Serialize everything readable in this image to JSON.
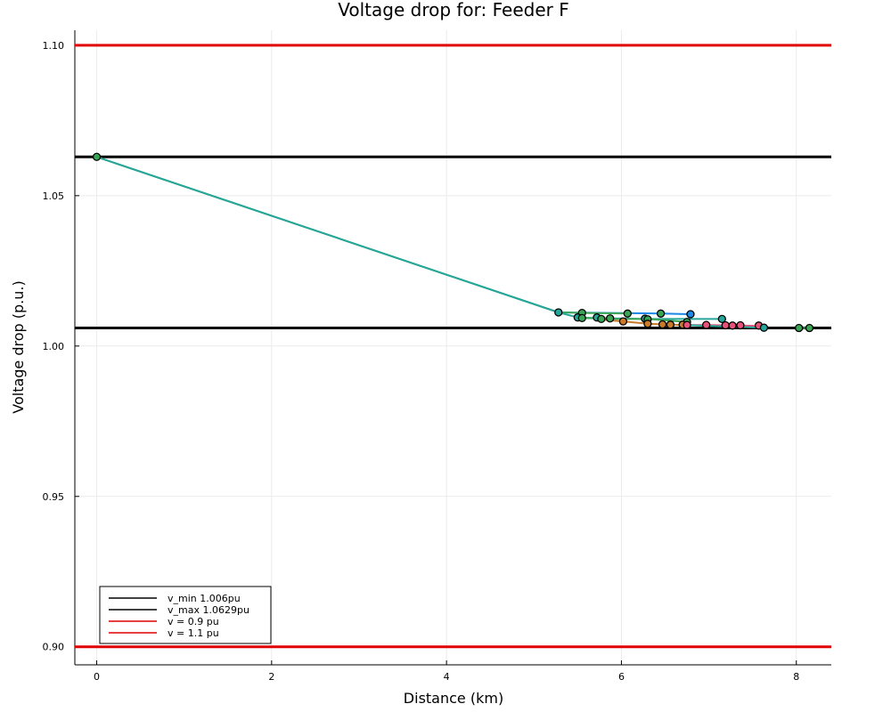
{
  "chart_data": {
    "type": "line",
    "title": "Voltage drop for: Feeder F",
    "xlabel": "Distance (km)",
    "ylabel": "Voltage drop (p.u.)",
    "xlim": [
      -0.25,
      8.4
    ],
    "ylim": [
      0.894,
      1.105
    ],
    "xticks": [
      0,
      2,
      4,
      6,
      8
    ],
    "yticks": [
      0.9,
      0.95,
      1.0,
      1.05,
      1.1
    ],
    "ytick_labels": [
      "0.90",
      "0.95",
      "1.00",
      "1.05",
      "1.10"
    ],
    "grid": true,
    "legend_position": "bottom-left",
    "reference_lines": [
      {
        "name": "v_min 1.006pu",
        "y": 1.006,
        "color": "#000000"
      },
      {
        "name": "v_max 1.0629pu",
        "y": 1.0629,
        "color": "#000000"
      },
      {
        "name": "v = 0.9 pu",
        "y": 0.9,
        "color": "#e00000"
      },
      {
        "name": "v = 1.1 pu",
        "y": 1.1,
        "color": "#e00000"
      }
    ],
    "branches": [
      {
        "color": "#3aa655",
        "x": [
          0,
          5.28
        ],
        "y": [
          1.0629,
          1.0112
        ]
      },
      {
        "color": "#26a69a",
        "x": [
          0,
          5.28
        ],
        "y": [
          1.0629,
          1.0112
        ]
      },
      {
        "color": "#1e88e5",
        "x": [
          5.28,
          6.45,
          6.79
        ],
        "y": [
          1.0112,
          1.0108,
          1.0106
        ]
      },
      {
        "color": "#3aa655",
        "x": [
          5.28,
          5.55,
          6.07
        ],
        "y": [
          1.0112,
          1.011,
          1.0108
        ]
      },
      {
        "color": "#26a69a",
        "x": [
          5.28,
          5.5,
          5.72,
          6.27,
          7.15
        ],
        "y": [
          1.0112,
          1.0095,
          1.0093,
          1.009,
          1.009
        ]
      },
      {
        "color": "#3aa655",
        "x": [
          5.5,
          5.55,
          5.77,
          5.87,
          6.3,
          6.75
        ],
        "y": [
          1.0095,
          1.0093,
          1.0092,
          1.009,
          1.009,
          1.008
        ]
      },
      {
        "color": "#c97a2a",
        "x": [
          5.77,
          6.02,
          6.3,
          6.47,
          6.56,
          6.7
        ],
        "y": [
          1.0088,
          1.0082,
          1.0074,
          1.0072,
          1.0071,
          1.007
        ]
      },
      {
        "color": "#e8517a",
        "x": [
          6.7,
          6.97,
          7.19,
          7.27,
          7.36,
          7.57
        ],
        "y": [
          1.007,
          1.007,
          1.0069,
          1.0068,
          1.0068,
          1.0067
        ]
      },
      {
        "color": "#26a69a",
        "x": [
          6.74,
          7.63
        ],
        "y": [
          1.007,
          1.0061
        ]
      },
      {
        "color": "#3aa655",
        "x": [
          8.03,
          8.15
        ],
        "y": [
          1.006,
          1.006
        ]
      }
    ],
    "points": [
      {
        "x": 0,
        "y": 1.0629,
        "color": "#3aa655"
      },
      {
        "x": 5.28,
        "y": 1.0112,
        "color": "#26a69a"
      },
      {
        "x": 5.55,
        "y": 1.011,
        "color": "#3aa655"
      },
      {
        "x": 6.07,
        "y": 1.0108,
        "color": "#3aa655"
      },
      {
        "x": 6.45,
        "y": 1.0108,
        "color": "#3aa655"
      },
      {
        "x": 6.79,
        "y": 1.0106,
        "color": "#1e88e5"
      },
      {
        "x": 5.5,
        "y": 1.0095,
        "color": "#26a69a"
      },
      {
        "x": 5.55,
        "y": 1.0093,
        "color": "#3aa655"
      },
      {
        "x": 5.72,
        "y": 1.0095,
        "color": "#26a69a"
      },
      {
        "x": 5.77,
        "y": 1.009,
        "color": "#3aa655"
      },
      {
        "x": 5.87,
        "y": 1.0092,
        "color": "#3aa655"
      },
      {
        "x": 6.27,
        "y": 1.0091,
        "color": "#26a69a"
      },
      {
        "x": 6.3,
        "y": 1.0089,
        "color": "#3aa655"
      },
      {
        "x": 7.15,
        "y": 1.009,
        "color": "#26a69a"
      },
      {
        "x": 6.75,
        "y": 1.008,
        "color": "#3aa655"
      },
      {
        "x": 6.02,
        "y": 1.0082,
        "color": "#c97a2a"
      },
      {
        "x": 6.3,
        "y": 1.0074,
        "color": "#c97a2a"
      },
      {
        "x": 6.47,
        "y": 1.0072,
        "color": "#c97a2a"
      },
      {
        "x": 6.56,
        "y": 1.0071,
        "color": "#c97a2a"
      },
      {
        "x": 6.7,
        "y": 1.0071,
        "color": "#c97a2a"
      },
      {
        "x": 6.75,
        "y": 1.007,
        "color": "#e8517a"
      },
      {
        "x": 6.97,
        "y": 1.007,
        "color": "#e8517a"
      },
      {
        "x": 7.19,
        "y": 1.0069,
        "color": "#e8517a"
      },
      {
        "x": 7.27,
        "y": 1.0068,
        "color": "#e8517a"
      },
      {
        "x": 7.36,
        "y": 1.0069,
        "color": "#e8517a"
      },
      {
        "x": 7.57,
        "y": 1.0068,
        "color": "#e8517a"
      },
      {
        "x": 7.63,
        "y": 1.0061,
        "color": "#26a69a"
      },
      {
        "x": 8.03,
        "y": 1.006,
        "color": "#3aa655"
      },
      {
        "x": 8.15,
        "y": 1.006,
        "color": "#3aa655"
      }
    ]
  }
}
